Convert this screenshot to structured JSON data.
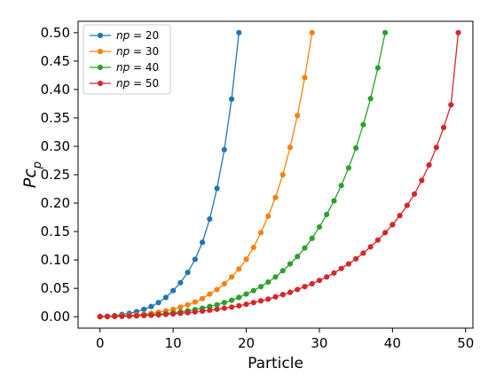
{
  "chart_data": {
    "type": "line",
    "xlabel": "Particle",
    "ylabel": "Pc_p",
    "xlim": [
      -3,
      51
    ],
    "ylim": [
      -0.02,
      0.52
    ],
    "xticks": [
      0,
      10,
      20,
      30,
      40,
      50
    ],
    "yticks": [
      0.0,
      0.05,
      0.1,
      0.15,
      0.2,
      0.25,
      0.3,
      0.35,
      0.4,
      0.45,
      0.5
    ],
    "ytick_labels": [
      "0.00",
      "0.05",
      "0.10",
      "0.15",
      "0.20",
      "0.25",
      "0.30",
      "0.35",
      "0.40",
      "0.45",
      "0.50"
    ],
    "grid": false,
    "legend_position": "top-left",
    "series": [
      {
        "name": "np = 20",
        "legend_var": "np",
        "legend_value": "= 20",
        "color": "#1f77b4",
        "x": [
          0,
          1,
          2,
          3,
          4,
          5,
          6,
          7,
          8,
          9,
          10,
          11,
          12,
          13,
          14,
          15,
          16,
          17,
          18,
          19
        ],
        "y": [
          0.0005,
          0.001,
          0.002,
          0.004,
          0.006,
          0.009,
          0.013,
          0.018,
          0.025,
          0.034,
          0.046,
          0.06,
          0.078,
          0.101,
          0.131,
          0.172,
          0.226,
          0.294,
          0.383,
          0.5
        ]
      },
      {
        "name": "np = 30",
        "legend_var": "np",
        "legend_value": "= 30",
        "color": "#ff7f0e",
        "x": [
          0,
          1,
          2,
          3,
          4,
          5,
          6,
          7,
          8,
          9,
          10,
          11,
          12,
          13,
          14,
          15,
          16,
          17,
          18,
          19,
          20,
          21,
          22,
          23,
          24,
          25,
          26,
          27,
          28,
          29
        ],
        "y": [
          0.0003,
          0.0006,
          0.001,
          0.0016,
          0.0024,
          0.0034,
          0.0046,
          0.0061,
          0.008,
          0.0103,
          0.013,
          0.017,
          0.021,
          0.026,
          0.032,
          0.04,
          0.048,
          0.058,
          0.07,
          0.084,
          0.101,
          0.122,
          0.148,
          0.177,
          0.21,
          0.25,
          0.298,
          0.354,
          0.421,
          0.5
        ]
      },
      {
        "name": "np = 40",
        "legend_var": "np",
        "legend_value": "= 40",
        "color": "#2ca02c",
        "x": [
          0,
          1,
          2,
          3,
          4,
          5,
          6,
          7,
          8,
          9,
          10,
          11,
          12,
          13,
          14,
          15,
          16,
          17,
          18,
          19,
          20,
          21,
          22,
          23,
          24,
          25,
          26,
          27,
          28,
          29,
          30,
          31,
          32,
          33,
          34,
          35,
          36,
          37,
          38,
          39
        ],
        "y": [
          0.0002,
          0.0004,
          0.0007,
          0.001,
          0.0014,
          0.002,
          0.0027,
          0.0035,
          0.0045,
          0.0057,
          0.007,
          0.0086,
          0.0105,
          0.0127,
          0.015,
          0.018,
          0.021,
          0.025,
          0.029,
          0.034,
          0.04,
          0.046,
          0.053,
          0.061,
          0.07,
          0.081,
          0.093,
          0.106,
          0.121,
          0.138,
          0.158,
          0.18,
          0.204,
          0.231,
          0.262,
          0.297,
          0.338,
          0.384,
          0.438,
          0.5
        ]
      },
      {
        "name": "np = 50",
        "legend_var": "np",
        "legend_value": "= 50",
        "color": "#d62728",
        "x": [
          0,
          1,
          2,
          3,
          4,
          5,
          6,
          7,
          8,
          9,
          10,
          11,
          12,
          13,
          14,
          15,
          16,
          17,
          18,
          19,
          20,
          21,
          22,
          23,
          24,
          25,
          26,
          27,
          28,
          29,
          30,
          31,
          32,
          33,
          34,
          35,
          36,
          37,
          38,
          39,
          40,
          41,
          42,
          43,
          44,
          45,
          46,
          47,
          48,
          49
        ],
        "y": [
          0.0001,
          0.0003,
          0.0005,
          0.0008,
          0.0012,
          0.0016,
          0.0021,
          0.0027,
          0.0034,
          0.0042,
          0.005,
          0.006,
          0.0072,
          0.0085,
          0.0099,
          0.0115,
          0.0132,
          0.015,
          0.017,
          0.0193,
          0.022,
          0.025,
          0.028,
          0.031,
          0.035,
          0.039,
          0.043,
          0.048,
          0.053,
          0.058,
          0.064,
          0.07,
          0.077,
          0.085,
          0.093,
          0.102,
          0.112,
          0.123,
          0.135,
          0.148,
          0.162,
          0.178,
          0.196,
          0.216,
          0.24,
          0.267,
          0.298,
          0.333,
          0.373,
          0.5
        ]
      }
    ]
  }
}
